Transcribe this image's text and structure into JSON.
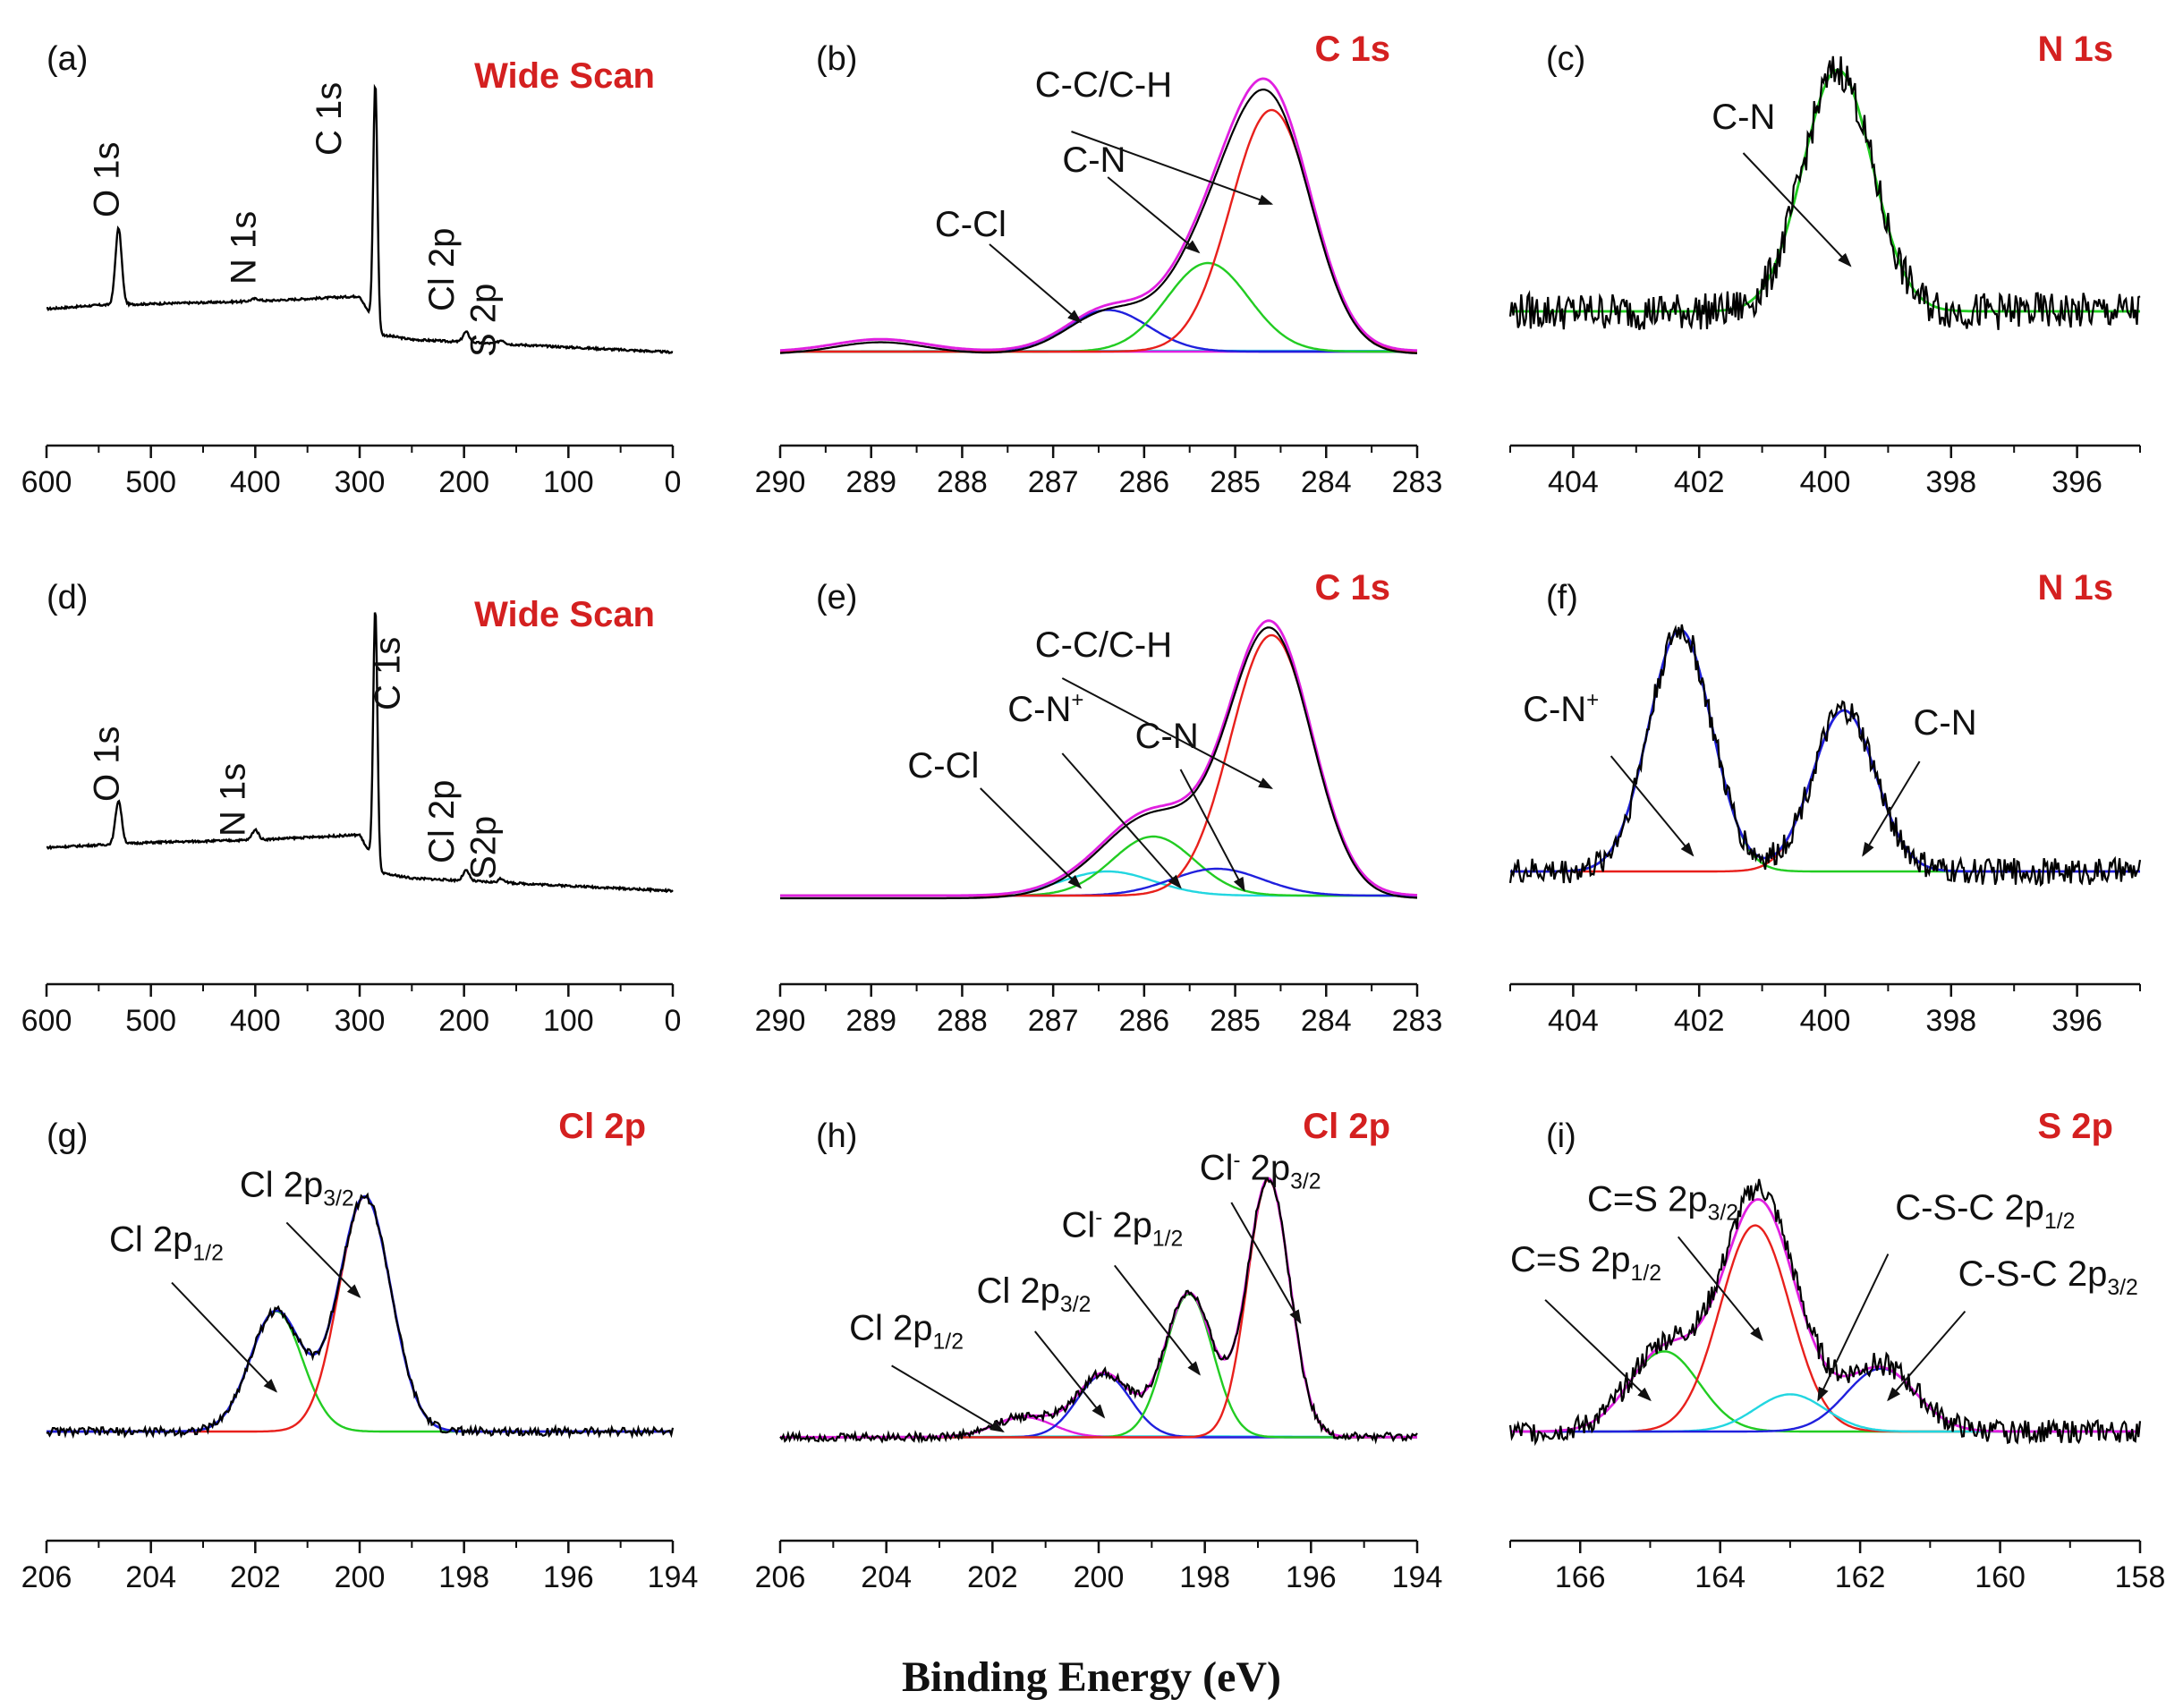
{
  "figure": {
    "xlabel": "Binding Energy (eV)"
  },
  "colors": {
    "title": "#d42020",
    "exp": "#000000",
    "red": "#e8201c",
    "green": "#22cc22",
    "blue": "#2020dd",
    "cyan": "#22d6e0",
    "magenta": "#e020e0"
  },
  "chart_data": [
    {
      "id": "a",
      "type": "line",
      "letter": "(a)",
      "title": "Wide Scan",
      "xlabel": "Binding Energy (eV)",
      "xlim": [
        600,
        0
      ],
      "ylim": [
        0,
        1
      ],
      "xticks": [
        600,
        500,
        400,
        300,
        200,
        100,
        0
      ],
      "baseline": [
        [
          600,
          0.22
        ],
        [
          550,
          0.235
        ],
        [
          500,
          0.24
        ],
        [
          400,
          0.25
        ],
        [
          300,
          0.27
        ],
        [
          280,
          0.12
        ],
        [
          250,
          0.1
        ],
        [
          200,
          0.09
        ],
        [
          100,
          0.07
        ],
        [
          0,
          0.05
        ]
      ],
      "peaks": [
        [
          531,
          0.3,
          3
        ],
        [
          285,
          0.95,
          2
        ],
        [
          400,
          0.01,
          4
        ],
        [
          198,
          0.04,
          3
        ],
        [
          164,
          0.015,
          3
        ]
      ],
      "noise": 0.004,
      "labels": [
        {
          "text": "O 1s",
          "x": 531,
          "y": 0.55,
          "rotate": true
        },
        {
          "text": "N 1s",
          "x": 400,
          "y": 0.3,
          "rotate": true
        },
        {
          "text": "C 1s",
          "x": 318,
          "y": 0.78,
          "rotate": true
        },
        {
          "text": "Cl 2p",
          "x": 210,
          "y": 0.2,
          "rotate": true
        },
        {
          "text": "S 2p",
          "x": 170,
          "y": 0.03,
          "rotate": true
        }
      ]
    },
    {
      "id": "b",
      "type": "line",
      "letter": "(b)",
      "title": "C 1s",
      "xlabel": "Binding Energy (eV)",
      "xlim": [
        290,
        283
      ],
      "ylim": [
        0,
        1
      ],
      "xticks": [
        290,
        289,
        288,
        287,
        286,
        285,
        284,
        283
      ],
      "components": [
        {
          "color": "cyan",
          "center": 285.0,
          "height": 0.003,
          "width": 3
        },
        {
          "color": "magenta",
          "center": 288.9,
          "height": 0.045,
          "width": 0.5
        },
        {
          "color": "blue",
          "center": 286.4,
          "height": 0.155,
          "width": 0.45
        },
        {
          "color": "green",
          "center": 285.3,
          "height": 0.33,
          "width": 0.45
        },
        {
          "color": "red",
          "center": 284.6,
          "height": 0.9,
          "width": 0.45
        }
      ],
      "envelope_color": "magenta",
      "exp": true,
      "exp_noise": 0.0,
      "exp_shift": 0.0,
      "exp_scale": 0.97,
      "base": 0.05,
      "annotations": [
        {
          "text": "C-C/C-H",
          "underline": [
            "C",
            "",
            "C",
            "-H"
          ],
          "label": [
            287.2,
            1.0
          ],
          "arrow": [
            [
              286.8,
              0.87
            ],
            [
              284.6,
              0.6
            ]
          ]
        },
        {
          "text": "C-N",
          "label": [
            286.9,
            0.72
          ],
          "arrow": [
            [
              286.4,
              0.7
            ],
            [
              285.4,
              0.42
            ]
          ]
        },
        {
          "text": "C-Cl",
          "label": [
            288.3,
            0.48
          ],
          "arrow": [
            [
              287.7,
              0.45
            ],
            [
              286.7,
              0.16
            ]
          ]
        }
      ]
    },
    {
      "id": "c",
      "type": "line",
      "letter": "(c)",
      "title": "N 1s",
      "xlabel": "Binding Energy (eV)",
      "xlim": [
        405,
        395
      ],
      "ylim": [
        0,
        1
      ],
      "xticks": [
        404,
        402,
        400,
        398,
        396
      ],
      "components": [
        {
          "color": "green",
          "center": 399.8,
          "height": 0.9,
          "width": 0.55
        }
      ],
      "base": 0.2,
      "envelope_color": "green",
      "exp": true,
      "exp_noise": 0.07,
      "exp_scale": 1.0,
      "annotations": [
        {
          "text": "C-N",
          "label": [
            401.8,
            0.88
          ],
          "arrow": [
            [
              401.3,
              0.79
            ],
            [
              399.6,
              0.37
            ]
          ]
        }
      ]
    },
    {
      "id": "d",
      "type": "line",
      "letter": "(d)",
      "title": "Wide Scan",
      "xlabel": "Binding Energy (eV)",
      "xlim": [
        600,
        0
      ],
      "ylim": [
        0,
        1
      ],
      "xticks": [
        600,
        500,
        400,
        300,
        200,
        100,
        0
      ],
      "baseline": [
        [
          600,
          0.22
        ],
        [
          550,
          0.23
        ],
        [
          500,
          0.24
        ],
        [
          400,
          0.25
        ],
        [
          300,
          0.27
        ],
        [
          280,
          0.12
        ],
        [
          250,
          0.1
        ],
        [
          200,
          0.09
        ],
        [
          100,
          0.07
        ],
        [
          0,
          0.05
        ]
      ],
      "peaks": [
        [
          531,
          0.17,
          3
        ],
        [
          285,
          1.0,
          2
        ],
        [
          400,
          0.04,
          3
        ],
        [
          198,
          0.04,
          3
        ],
        [
          164,
          0.015,
          3
        ]
      ],
      "noise": 0.004,
      "labels": [
        {
          "text": "O 1s",
          "x": 531,
          "y": 0.38,
          "rotate": true
        },
        {
          "text": "N 1s",
          "x": 410,
          "y": 0.25,
          "rotate": true
        },
        {
          "text": "C 1s",
          "x": 262,
          "y": 0.72,
          "rotate": true
        },
        {
          "text": "Cl 2p",
          "x": 210,
          "y": 0.15,
          "rotate": true
        },
        {
          "text": "S2p",
          "x": 170,
          "y": 0.09,
          "rotate": true
        }
      ]
    },
    {
      "id": "e",
      "type": "line",
      "letter": "(e)",
      "title": "C 1s",
      "xlabel": "Binding Energy (eV)",
      "xlim": [
        290,
        283
      ],
      "ylim": [
        0,
        1
      ],
      "xticks": [
        290,
        289,
        288,
        287,
        286,
        285,
        284,
        283
      ],
      "components": [
        {
          "color": "cyan",
          "center": 286.4,
          "height": 0.09,
          "width": 0.5
        },
        {
          "color": "green",
          "center": 285.9,
          "height": 0.22,
          "width": 0.45
        },
        {
          "color": "blue",
          "center": 285.2,
          "height": 0.1,
          "width": 0.5
        },
        {
          "color": "red",
          "center": 284.6,
          "height": 0.97,
          "width": 0.45
        }
      ],
      "envelope_color": "magenta",
      "exp": true,
      "exp_noise": 0.0,
      "exp_scale": 0.985,
      "base": 0.03,
      "annotations": [
        {
          "text": "C-C/C-H",
          "label": [
            287.2,
            0.92
          ],
          "arrow": [
            [
              286.9,
              0.84
            ],
            [
              284.6,
              0.43
            ]
          ]
        },
        {
          "text": "C-N+",
          "label": [
            287.5,
            0.68
          ],
          "arrow": [
            [
              286.9,
              0.56
            ],
            [
              285.6,
              0.06
            ]
          ]
        },
        {
          "text": "C-N",
          "label": [
            286.1,
            0.58
          ],
          "arrow": [
            [
              285.6,
              0.5
            ],
            [
              284.9,
              0.05
            ]
          ]
        },
        {
          "text": "C-Cl",
          "label": [
            288.6,
            0.47
          ],
          "arrow": [
            [
              287.8,
              0.43
            ],
            [
              286.7,
              0.06
            ]
          ]
        }
      ]
    },
    {
      "id": "f",
      "type": "line",
      "letter": "(f)",
      "title": "N 1s",
      "xlabel": "Binding Energy (eV)",
      "xlim": [
        405,
        395
      ],
      "ylim": [
        0,
        1
      ],
      "xticks": [
        404,
        402,
        400,
        398,
        396
      ],
      "components": [
        {
          "color": "green",
          "center": 402.3,
          "height": 0.9,
          "width": 0.5
        },
        {
          "color": "red",
          "center": 399.7,
          "height": 0.6,
          "width": 0.5
        }
      ],
      "envelope_color": "blue",
      "base": 0.12,
      "exp": true,
      "exp_noise": 0.05,
      "exp_scale": 1.0,
      "annotations": [
        {
          "text": "C-N+",
          "label": [
            404.8,
            0.68
          ],
          "arrow": [
            [
              403.4,
              0.55
            ],
            [
              402.1,
              0.18
            ]
          ]
        },
        {
          "text": "C-N",
          "label": [
            398.6,
            0.63
          ],
          "arrow": [
            [
              398.5,
              0.53
            ],
            [
              399.4,
              0.18
            ]
          ]
        }
      ]
    },
    {
      "id": "g",
      "type": "line",
      "letter": "(g)",
      "title": "Cl 2p",
      "xlabel": "Binding Energy (eV)",
      "xlim": [
        206,
        194
      ],
      "ylim": [
        0,
        1
      ],
      "xticks": [
        206,
        204,
        202,
        200,
        198,
        196,
        194
      ],
      "components": [
        {
          "color": "green",
          "center": 201.6,
          "height": 0.42,
          "width": 0.5
        },
        {
          "color": "red",
          "center": 199.9,
          "height": 0.82,
          "width": 0.5
        }
      ],
      "envelope_color": "blue",
      "base": 0.1,
      "exp": true,
      "exp_noise": 0.015,
      "exp_scale": 1.0,
      "annotations": [
        {
          "text": "Cl 2p3/2",
          "label": [
            202.3,
            0.92
          ],
          "arrow": [
            [
              201.4,
              0.83
            ],
            [
              200.0,
              0.57
            ]
          ]
        },
        {
          "text": "Cl 2p1/2",
          "label": [
            204.8,
            0.73
          ],
          "arrow": [
            [
              203.6,
              0.62
            ],
            [
              201.6,
              0.24
            ]
          ]
        }
      ]
    },
    {
      "id": "h",
      "type": "line",
      "letter": "(h)",
      "title": "Cl 2p",
      "xlabel": "Binding Energy (eV)",
      "xlim": [
        206,
        194
      ],
      "ylim": [
        0,
        1
      ],
      "xticks": [
        206,
        204,
        202,
        200,
        198,
        196,
        194
      ],
      "components": [
        {
          "color": "cyan",
          "center": 199.0,
          "height": 0.003,
          "width": 3
        },
        {
          "color": "magenta",
          "center": 201.4,
          "height": 0.07,
          "width": 0.55
        },
        {
          "color": "blue",
          "center": 199.9,
          "height": 0.22,
          "width": 0.5
        },
        {
          "color": "green",
          "center": 198.3,
          "height": 0.5,
          "width": 0.45
        },
        {
          "color": "red",
          "center": 196.8,
          "height": 0.9,
          "width": 0.4
        }
      ],
      "envelope_color": "magenta",
      "base": 0.08,
      "exp": true,
      "exp_noise": 0.015,
      "exp_scale": 1.0,
      "annotations": [
        {
          "text": "Cl- 2p3/2",
          "label": [
            198.1,
            0.98
          ],
          "arrow": [
            [
              197.5,
              0.9
            ],
            [
              196.2,
              0.48
            ]
          ]
        },
        {
          "text": "Cl- 2p1/2",
          "label": [
            200.7,
            0.78
          ],
          "arrow": [
            [
              199.7,
              0.68
            ],
            [
              198.1,
              0.3
            ]
          ]
        },
        {
          "text": "Cl 2p3/2",
          "label": [
            202.3,
            0.55
          ],
          "arrow": [
            [
              201.2,
              0.45
            ],
            [
              199.9,
              0.15
            ]
          ]
        },
        {
          "text": "Cl 2p1/2",
          "label": [
            204.7,
            0.42
          ],
          "arrow": [
            [
              203.9,
              0.33
            ],
            [
              201.8,
              0.1
            ]
          ]
        }
      ]
    },
    {
      "id": "i",
      "type": "line",
      "letter": "(i)",
      "title": "S 2p",
      "xlabel": "Binding Energy (eV)",
      "xlim": [
        167,
        158
      ],
      "ylim": [
        0,
        1
      ],
      "xticks": [
        166,
        164,
        162,
        160,
        158
      ],
      "components": [
        {
          "color": "green",
          "center": 164.8,
          "height": 0.28,
          "width": 0.5
        },
        {
          "color": "red",
          "center": 163.5,
          "height": 0.72,
          "width": 0.5
        },
        {
          "color": "cyan",
          "center": 163.0,
          "height": 0.13,
          "width": 0.5
        },
        {
          "color": "blue",
          "center": 161.7,
          "height": 0.22,
          "width": 0.5
        }
      ],
      "envelope_color": "magenta",
      "base": 0.1,
      "exp": true,
      "exp_noise": 0.04,
      "exp_scale": 1.05,
      "annotations": [
        {
          "text": "C=S 2p3/2",
          "label": [
            165.9,
            0.87
          ],
          "arrow": [
            [
              164.6,
              0.78
            ],
            [
              163.4,
              0.42
            ]
          ]
        },
        {
          "text": "C=S 2p1/2",
          "label": [
            167.0,
            0.66
          ],
          "arrow": [
            [
              166.5,
              0.56
            ],
            [
              165.0,
              0.21
            ]
          ]
        },
        {
          "text": "C-S-C 2p1/2",
          "label": [
            161.5,
            0.84
          ],
          "arrow": [
            [
              161.6,
              0.72
            ],
            [
              162.6,
              0.21
            ]
          ]
        },
        {
          "text": "C-S-C 2p3/2",
          "label": [
            160.6,
            0.61
          ],
          "arrow": [
            [
              160.5,
              0.52
            ],
            [
              161.6,
              0.21
            ]
          ]
        }
      ]
    }
  ]
}
